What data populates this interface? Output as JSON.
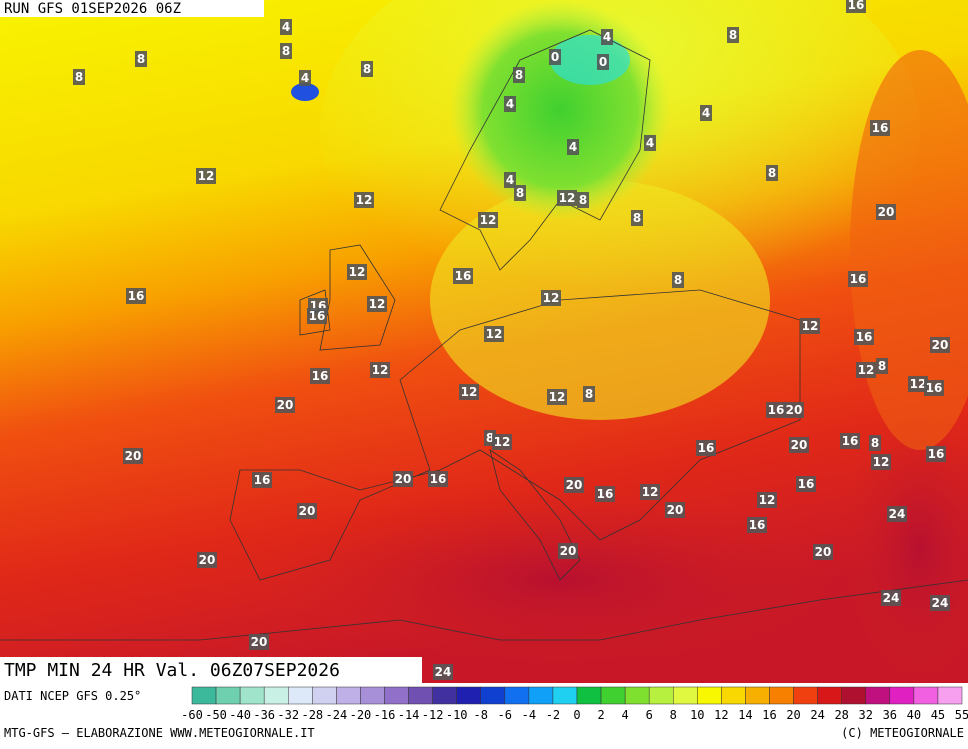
{
  "header": {
    "run": "RUN GFS 01SEP2026 06Z",
    "product": "TMP MIN 24 HR Val. 06Z07SEP2026"
  },
  "map": {
    "labels": [
      4,
      8,
      4,
      8,
      8,
      8,
      0,
      4,
      0,
      8,
      8,
      4,
      4,
      16,
      16,
      4,
      4,
      12,
      4,
      8,
      8,
      12,
      12,
      8,
      12,
      8,
      20,
      12,
      16,
      16,
      12,
      16,
      16,
      12,
      8,
      16,
      12,
      12,
      16,
      20,
      16,
      12,
      12,
      8,
      12,
      16,
      20,
      12,
      12,
      8,
      16,
      20,
      8,
      12,
      16,
      20,
      16,
      8,
      12,
      16,
      20,
      16,
      20,
      16,
      20,
      16,
      12,
      16,
      12,
      20,
      20,
      16,
      24,
      20,
      20,
      20,
      24,
      24,
      20,
      24
    ]
  },
  "footer": {
    "source": "DATI NCEP GFS 0.25°",
    "credit": "MTG-GFS — ELABORAZIONE WWW.METEOGIORNALE.IT",
    "copyright": "(C) METEOGIORNALE"
  },
  "colorbar": {
    "labels": [
      -60,
      -50,
      -40,
      -36,
      -32,
      -28,
      -24,
      -20,
      -16,
      -14,
      -12,
      -10,
      -8,
      -6,
      -4,
      -2,
      0,
      2,
      4,
      6,
      8,
      10,
      12,
      14,
      16,
      20,
      24,
      28,
      32,
      36,
      40,
      45,
      55
    ],
    "colors": [
      "#3cb89a",
      "#6fd0b0",
      "#a0e4cc",
      "#c8f0e4",
      "#dde8f8",
      "#d0d0f0",
      "#c0b0e8",
      "#a890d8",
      "#9070c8",
      "#7050b0",
      "#4030a0",
      "#2020b0",
      "#1040d0",
      "#1070f0",
      "#10a0f8",
      "#20d0f0",
      "#10c040",
      "#40d030",
      "#80e030",
      "#b8f040",
      "#e0f840",
      "#f8f800",
      "#f8d800",
      "#f8b000",
      "#f88000",
      "#f04010",
      "#d81818",
      "#b01030",
      "#c01080",
      "#e020c0",
      "#f060e0",
      "#f8a0f0"
    ]
  }
}
